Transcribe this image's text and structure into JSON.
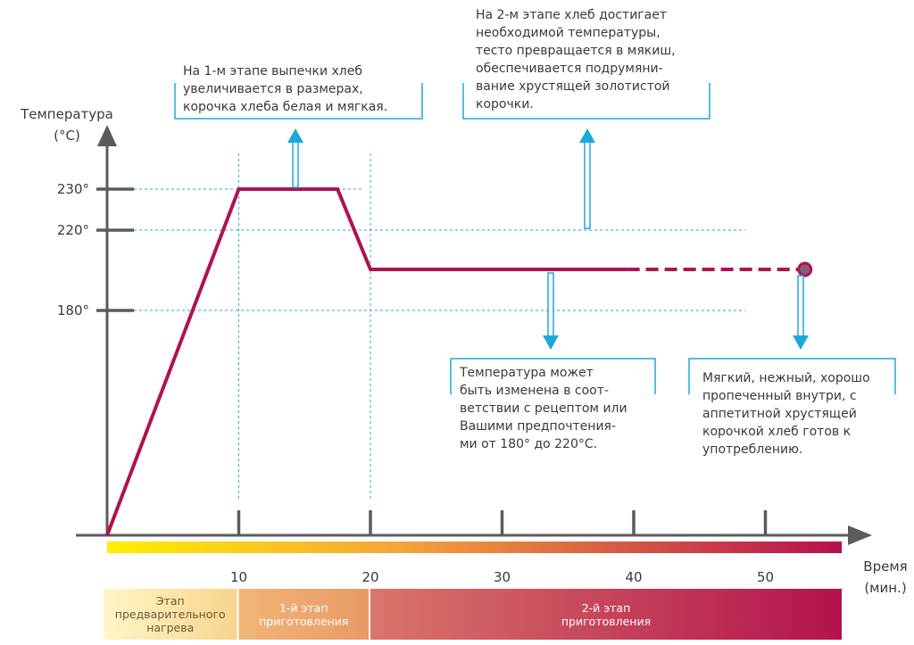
{
  "chart_data": {
    "type": "line",
    "ylabel_line1": "Температура",
    "ylabel_line2": "(°C)",
    "xlabel_line1": "Время",
    "xlabel_line2": "(мин.)",
    "y_ticks": [
      {
        "value": 230,
        "label": "230°"
      },
      {
        "value": 220,
        "label": "220°"
      },
      {
        "value": 180,
        "label": "180°"
      }
    ],
    "x_ticks": [
      {
        "value": 10,
        "label": "10"
      },
      {
        "value": 20,
        "label": "20"
      },
      {
        "value": 30,
        "label": "30"
      },
      {
        "value": 40,
        "label": "40"
      },
      {
        "value": 50,
        "label": "50"
      }
    ],
    "series": [
      {
        "points": [
          {
            "x": 0,
            "y": 0
          },
          {
            "x": 10,
            "y": 230
          },
          {
            "x": 17.5,
            "y": 230
          },
          {
            "x": 20,
            "y": 200
          },
          {
            "x": 39.5,
            "y": 200
          }
        ],
        "dashed_points": [
          {
            "x": 39.5,
            "y": 200
          },
          {
            "x": 53,
            "y": 200
          }
        ],
        "end_marker": {
          "x": 53,
          "y": 200
        },
        "color": "#b0124f"
      }
    ],
    "accent_color": "#1ea7dc",
    "stages": [
      {
        "line1": "Этап",
        "line2": "предварительного",
        "line3": "нагрева",
        "x_start": 0,
        "x_end": 10
      },
      {
        "line1": "1-й этап",
        "line2": "приготовления",
        "x_start": 10,
        "x_end": 20
      },
      {
        "line1": "2-й этап",
        "line2": "приготовления",
        "x_start": 20,
        "x_end": 56
      }
    ]
  },
  "annotations": {
    "stage1": [
      "На 1-м этапе выпечки хлеб",
      "увеличивается в размерах,",
      "корочка хлеба белая и мягкая."
    ],
    "stage2": [
      "На 2-м этапе хлеб достигает",
      "необходимой температуры,",
      "тесто превращается в мякиш,",
      "обеспечивается подрумяни-",
      "вание хрустящей золотистой",
      "корочки."
    ],
    "temperature": [
      "Температура может",
      "быть изменена в соот-",
      "ветствии с рецептом или",
      "Вашими предпочтения-",
      "ми от 180° до 220°C."
    ],
    "ready": [
      "Мягкий, нежный, хорошо",
      "пропеченный внутри, с",
      "аппетитной хрустящей",
      "корочкой хлеб готов к",
      "употреблению."
    ]
  }
}
